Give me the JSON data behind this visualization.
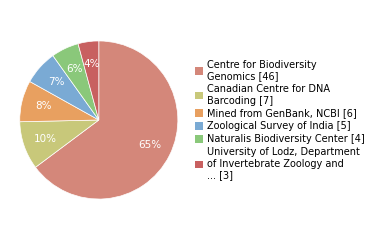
{
  "labels": [
    "Centre for Biodiversity\nGenomics [46]",
    "Canadian Centre for DNA\nBarcoding [7]",
    "Mined from GenBank, NCBI [6]",
    "Zoological Survey of India [5]",
    "Naturalis Biodiversity Center [4]",
    "University of Lodz, Department\nof Invertebrate Zoology and\n... [3]"
  ],
  "values": [
    46,
    7,
    6,
    5,
    4,
    3
  ],
  "colors": [
    "#d4877a",
    "#c8c87a",
    "#e8a060",
    "#7aaad4",
    "#8ac87a",
    "#c86060"
  ],
  "background_color": "#ffffff",
  "label_fontsize": 7.0,
  "pct_fontsize": 7.5
}
